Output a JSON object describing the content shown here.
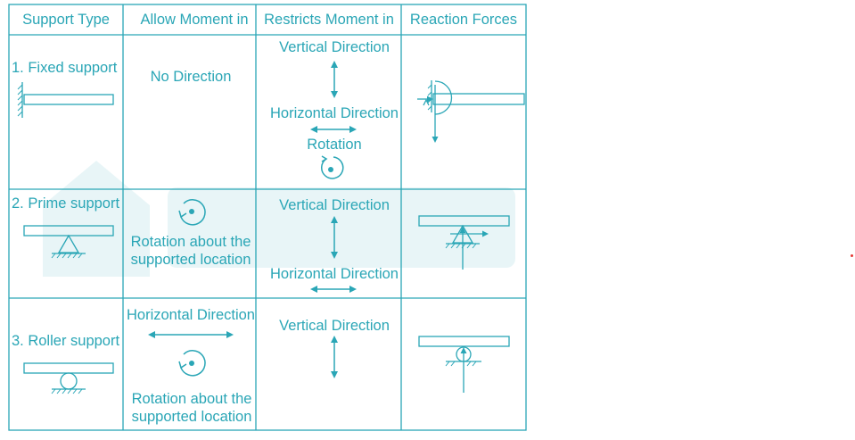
{
  "table": {
    "headers": [
      "Support Type",
      "Allow Moment in",
      "Restricts Moment in",
      "Reaction Forces"
    ],
    "rows": [
      {
        "support": "1. Fixed support",
        "allow": [
          "No Direction"
        ],
        "restricts": [
          "Vertical Direction",
          "Horizontal Direction",
          "Rotation"
        ]
      },
      {
        "support": "2. Prime support",
        "allow": [
          "Rotation about the",
          "supported location"
        ],
        "restricts": [
          "Vertical Direction",
          "Horizontal Direction"
        ]
      },
      {
        "support": "3. Roller support",
        "allow": [
          "Horizontal Direction",
          "Rotation about the",
          "supported location"
        ],
        "restricts": [
          "Vertical Direction"
        ]
      }
    ]
  },
  "colors": {
    "line": "#2aa6b6",
    "text": "#2aa6b6",
    "watermark": "#2aa6b6",
    "dot": "#e53935"
  }
}
